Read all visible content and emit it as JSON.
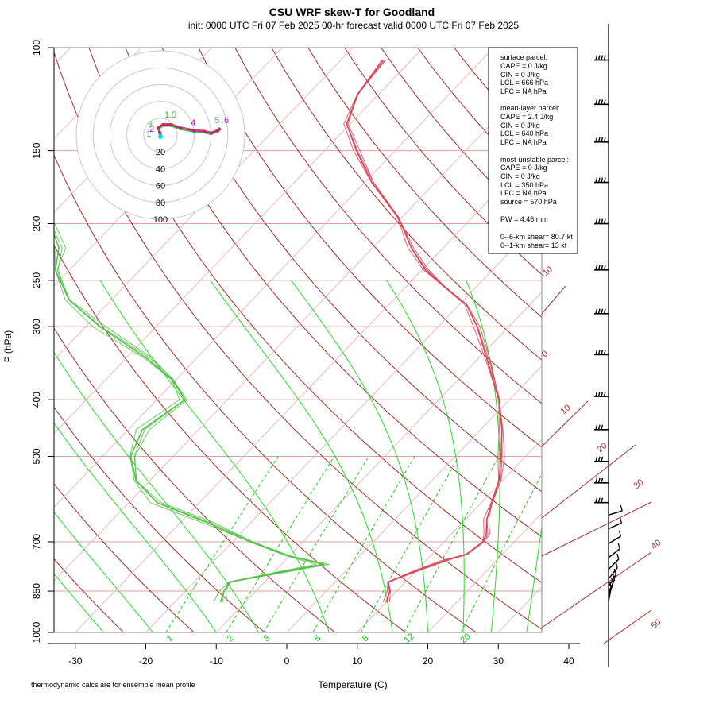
{
  "title": "CSU WRF skew-T for Goodland",
  "subtitle": "init: 0000 UTC Fri 07 Feb 2025     00-hr forecast valid 0000 UTC Fri 07 Feb 2025",
  "footnote": "thermodynamic calcs are for ensemble mean profile",
  "colors": {
    "temperature": "#d9475b",
    "dewpoint": "#55c24a",
    "isotherm": "#a52a2a",
    "isotherm_light": "#e3b3b3",
    "mixing_ratio": "#00cc00",
    "moist_adiabat": "#22dd22",
    "isobar": "#e3a0a0",
    "hodograph_ring": "#c8c8c8",
    "hodograph_line": "#cc00cc",
    "barb": "#000000"
  },
  "stats_box": {
    "surface_header": "surface parcel:",
    "surface_cape": "CAPE = 0 J/kg",
    "surface_cin": "CIN = 0 J/kg",
    "surface_lcl": "LCL = 666 hPa",
    "surface_lfc": "LFC = NA hPa",
    "mixed_header": "mean-layer parcel:",
    "mixed_cape": "CAPE = 2.4 J/kg",
    "mixed_cin": "CIN = 0 J/kg",
    "mixed_lcl": "LCL = 640 hPa",
    "mixed_lfc": "LFC = NA hPa",
    "mu_header": "most-unstable parcel:",
    "mu_cape": "CAPE = 0 J/kg",
    "mu_cin": "CIN = 0 J/kg",
    "mu_lcl": "LCL = 350 hPa",
    "mu_lfc": "LFC = NA hPa",
    "mu_source": "source = 570 hPa",
    "pw": "PW =  4.46 mm",
    "shear_6km": "0--6-km shear= 80.7 kt",
    "shear_1km": "0--1-km shear= 13 kt"
  },
  "chart_data": {
    "type": "line",
    "subtype": "skew-T log-P",
    "xlabel": "Temperature (C)",
    "ylabel": "P (hPa)",
    "x_ticks": [
      -30,
      -20,
      -10,
      0,
      10,
      20,
      30,
      40
    ],
    "y_ticks": [
      100,
      150,
      200,
      250,
      300,
      400,
      500,
      700,
      850,
      1000
    ],
    "xlim": [
      -33,
      47
    ],
    "ylim": [
      1000,
      100
    ],
    "y_scale": "log",
    "isotherm_labels": [
      "-10",
      "0",
      "10",
      "20",
      "30",
      "40",
      "50"
    ],
    "mixing_ratio_labels": [
      "1",
      "2",
      "3",
      "5",
      "8",
      "12",
      "20"
    ],
    "temperature_series": [
      {
        "p": 888,
        "t": 10.0
      },
      {
        "p": 850,
        "t": 9.0
      },
      {
        "p": 820,
        "t": 7.5
      },
      {
        "p": 790,
        "t": 9.5
      },
      {
        "p": 755,
        "t": 12.5
      },
      {
        "p": 735,
        "t": 15.0
      },
      {
        "p": 700,
        "t": 15.5
      },
      {
        "p": 680,
        "t": 15.0
      },
      {
        "p": 640,
        "t": 13.0
      },
      {
        "p": 600,
        "t": 11.5
      },
      {
        "p": 550,
        "t": 9.5
      },
      {
        "p": 500,
        "t": 6.5
      },
      {
        "p": 450,
        "t": 3.0
      },
      {
        "p": 400,
        "t": -1.5
      },
      {
        "p": 350,
        "t": -7.5
      },
      {
        "p": 300,
        "t": -14.5
      },
      {
        "p": 275,
        "t": -19.0
      },
      {
        "p": 255,
        "t": -25.0
      },
      {
        "p": 240,
        "t": -29.5
      },
      {
        "p": 220,
        "t": -34.5
      },
      {
        "p": 195,
        "t": -40.5
      },
      {
        "p": 170,
        "t": -49.0
      },
      {
        "p": 150,
        "t": -55.5
      },
      {
        "p": 135,
        "t": -60.5
      },
      {
        "p": 120,
        "t": -63.0
      },
      {
        "p": 105,
        "t": -64.0
      }
    ],
    "dewpoint_series": [
      {
        "p": 888,
        "t": -13.5
      },
      {
        "p": 850,
        "t": -14.5
      },
      {
        "p": 820,
        "t": -15.0
      },
      {
        "p": 790,
        "t": -9.5
      },
      {
        "p": 765,
        "t": -4.0
      },
      {
        "p": 740,
        "t": -10.0
      },
      {
        "p": 700,
        "t": -17.5
      },
      {
        "p": 650,
        "t": -26.0
      },
      {
        "p": 600,
        "t": -36.0
      },
      {
        "p": 550,
        "t": -42.0
      },
      {
        "p": 500,
        "t": -46.0
      },
      {
        "p": 450,
        "t": -48.0
      },
      {
        "p": 400,
        "t": -46.0
      },
      {
        "p": 370,
        "t": -50.5
      },
      {
        "p": 340,
        "t": -57.0
      },
      {
        "p": 300,
        "t": -68.0
      },
      {
        "p": 270,
        "t": -76.0
      },
      {
        "p": 240,
        "t": -82.0
      },
      {
        "p": 220,
        "t": -84.5
      },
      {
        "p": 200,
        "t": -89.0
      },
      {
        "p": 180,
        "t": -95.0
      }
    ],
    "hodograph": {
      "rings": [
        "20",
        "40",
        "60",
        "80",
        "100"
      ],
      "point_labels": [
        "1",
        "2",
        "3",
        "4",
        "5",
        "6",
        "1.5"
      ],
      "u": [
        0,
        -1,
        -3,
        3,
        12,
        24,
        40,
        52,
        60,
        68,
        70
      ],
      "v": [
        0,
        3,
        8,
        12,
        12,
        8,
        5,
        4,
        2,
        5,
        7
      ]
    },
    "wind_barb_pressures": [
      105,
      125,
      145,
      170,
      200,
      240,
      285,
      335,
      395,
      450,
      510,
      555,
      600,
      630,
      665,
      705,
      745,
      780,
      810,
      835,
      855,
      870,
      885
    ]
  }
}
